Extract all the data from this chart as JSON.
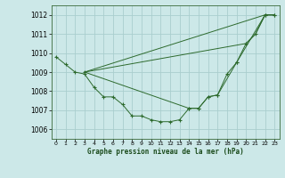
{
  "background_color": "#cce8e8",
  "grid_color": "#aacece",
  "line_color": "#2d6a2d",
  "title": "Graphe pression niveau de la mer (hPa)",
  "xlim": [
    -0.5,
    23.5
  ],
  "ylim": [
    1005.5,
    1012.5
  ],
  "yticks": [
    1006,
    1007,
    1008,
    1009,
    1010,
    1011,
    1012
  ],
  "xticks": [
    0,
    1,
    2,
    3,
    4,
    5,
    6,
    7,
    8,
    9,
    10,
    11,
    12,
    13,
    14,
    15,
    16,
    17,
    18,
    19,
    20,
    21,
    22,
    23
  ],
  "series": [
    {
      "x": [
        0,
        1,
        2,
        3,
        4,
        5,
        6,
        7,
        8,
        9,
        10,
        11,
        12,
        13,
        14,
        15,
        16,
        17,
        18,
        19,
        20,
        21,
        22,
        23
      ],
      "y": [
        1009.8,
        1009.4,
        1009.0,
        1008.9,
        1008.2,
        1007.7,
        1007.7,
        1007.3,
        1006.7,
        1006.7,
        1006.5,
        1006.4,
        1006.4,
        1006.5,
        1007.1,
        1007.1,
        1007.7,
        1007.8,
        1008.9,
        1009.5,
        1010.5,
        1011.0,
        1012.0,
        1012.0
      ],
      "marker": true
    },
    {
      "x": [
        3,
        22,
        23
      ],
      "y": [
        1009.0,
        1012.0,
        1012.0
      ],
      "marker": false
    },
    {
      "x": [
        3,
        20,
        21,
        22,
        23
      ],
      "y": [
        1009.0,
        1010.5,
        1011.0,
        1012.0,
        1012.0
      ],
      "marker": false
    },
    {
      "x": [
        3,
        14,
        15,
        16,
        17,
        19,
        22,
        23
      ],
      "y": [
        1009.0,
        1007.1,
        1007.1,
        1007.7,
        1007.8,
        1009.5,
        1012.0,
        1012.0
      ],
      "marker": true
    }
  ]
}
